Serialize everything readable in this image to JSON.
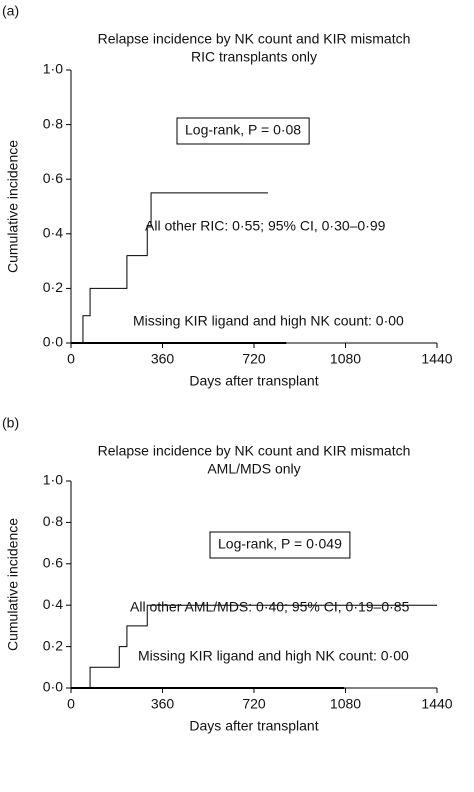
{
  "chart_data": [
    {
      "type": "line",
      "step": "post",
      "panel_label": "(a)",
      "title": "Relapse incidence by NK count and KIR mismatch",
      "subtitle": "RIC transplants only",
      "xlabel": "Days after transplant",
      "ylabel": "Cumulative incidence",
      "annotation": "Log-rank, P = 0·08",
      "xlim": [
        0,
        1440
      ],
      "xticks": [
        0,
        360,
        720,
        1080,
        1440
      ],
      "ylim": [
        0,
        1
      ],
      "yticks": [
        {
          "value": 0,
          "label": "0·0"
        },
        {
          "value": 0.2,
          "label": "0·2"
        },
        {
          "value": 0.4,
          "label": "0·4"
        },
        {
          "value": 0.6,
          "label": "0·6"
        },
        {
          "value": 0.8,
          "label": "0·8"
        },
        {
          "value": 1,
          "label": "1·0"
        }
      ],
      "series": [
        {
          "name": "All other RIC: 0·55; 95% CI, 0·30–0·99",
          "color": "#000000",
          "x": [
            0,
            47,
            75,
            220,
            300,
            315,
            775
          ],
          "values": [
            0,
            0.1,
            0.2,
            0.32,
            0.43,
            0.55,
            0.55
          ]
        },
        {
          "name": "Missing KIR ligand and high NK count: 0·00",
          "color": "#000000",
          "x": [
            0,
            847
          ],
          "values": [
            0,
            0
          ]
        }
      ]
    },
    {
      "type": "line",
      "step": "post",
      "panel_label": "(b)",
      "title": "Relapse incidence by NK count and KIR mismatch",
      "subtitle": "AML/MDS only",
      "xlabel": "Days after transplant",
      "ylabel": "Cumulative incidence",
      "annotation": "Log-rank, P = 0·049",
      "xlim": [
        0,
        1440
      ],
      "xticks": [
        0,
        360,
        720,
        1080,
        1440
      ],
      "ylim": [
        0,
        1
      ],
      "yticks": [
        {
          "value": 0,
          "label": "0·0"
        },
        {
          "value": 0.2,
          "label": "0·2"
        },
        {
          "value": 0.4,
          "label": "0·4"
        },
        {
          "value": 0.6,
          "label": "0·6"
        },
        {
          "value": 0.8,
          "label": "0·8"
        },
        {
          "value": 1,
          "label": "1·0"
        }
      ],
      "series": [
        {
          "name": "All other AML/MDS: 0·40; 95% CI, 0·19–0·85",
          "color": "#000000",
          "x": [
            0,
            75,
            190,
            220,
            300,
            1440
          ],
          "values": [
            0,
            0.1,
            0.2,
            0.3,
            0.4,
            0.4
          ]
        },
        {
          "name": "Missing KIR ligand and high NK count: 0·00",
          "color": "#000000",
          "x": [
            0,
            1075
          ],
          "values": [
            0,
            0
          ]
        }
      ]
    }
  ]
}
